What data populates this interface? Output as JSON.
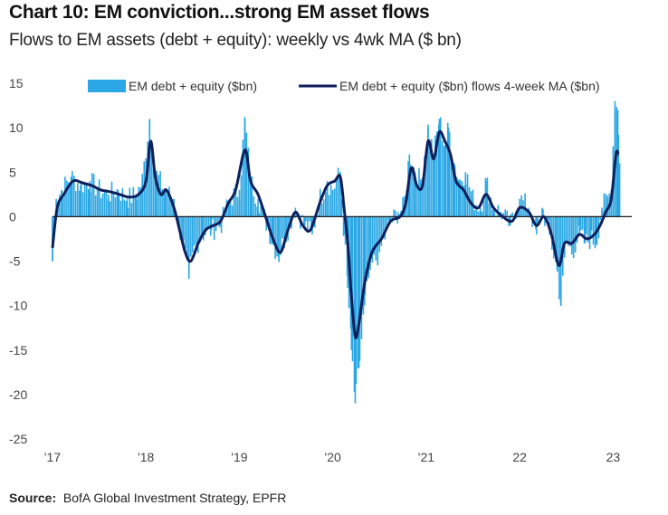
{
  "title": "Chart 10: EM conviction...strong EM asset flows",
  "subtitle": "Flows to EM assets (debt + equity): weekly vs 4wk MA ($ bn)",
  "source_label": "Source:",
  "source_text": "BofA Global Investment Strategy, EPFR",
  "chart_data": {
    "type": "bar+line",
    "title": "Chart 10: EM conviction...strong EM asset flows",
    "ylabel": "",
    "ylim": [
      -25,
      15
    ],
    "yticks": [
      15,
      10,
      5,
      0,
      -5,
      -10,
      -15,
      -20,
      -25
    ],
    "xticks": [
      "'17",
      "'18",
      "'19",
      "'20",
      "'21",
      "22",
      "23"
    ],
    "xlim_years": [
      2017,
      2023.2
    ],
    "grid": false,
    "legend": "top",
    "colors": {
      "bars": "#2aa7e4",
      "line": "#0e1f5c",
      "zero": "#1a1a1a"
    },
    "series": [
      {
        "name": "EM debt + equity ($bn)",
        "kind": "bar",
        "weekly_anchors": [
          [
            2017.0,
            -5
          ],
          [
            2017.04,
            2
          ],
          [
            2017.1,
            3
          ],
          [
            2017.2,
            4.5
          ],
          [
            2017.3,
            3.5
          ],
          [
            2017.4,
            4
          ],
          [
            2017.5,
            3
          ],
          [
            2017.6,
            2.5
          ],
          [
            2017.7,
            3
          ],
          [
            2017.8,
            2
          ],
          [
            2017.9,
            2.5
          ],
          [
            2017.96,
            4
          ],
          [
            2018.04,
            11
          ],
          [
            2018.1,
            5
          ],
          [
            2018.2,
            3
          ],
          [
            2018.3,
            2
          ],
          [
            2018.35,
            -1
          ],
          [
            2018.4,
            -3
          ],
          [
            2018.46,
            -7
          ],
          [
            2018.5,
            -4
          ],
          [
            2018.6,
            -2
          ],
          [
            2018.7,
            -1.5
          ],
          [
            2018.8,
            -1
          ],
          [
            2018.9,
            2
          ],
          [
            2019.0,
            3
          ],
          [
            2019.06,
            11
          ],
          [
            2019.12,
            4
          ],
          [
            2019.2,
            2
          ],
          [
            2019.3,
            -1
          ],
          [
            2019.36,
            -3
          ],
          [
            2019.42,
            -4.5
          ],
          [
            2019.5,
            -2
          ],
          [
            2019.6,
            1
          ],
          [
            2019.7,
            -1
          ],
          [
            2019.78,
            -2
          ],
          [
            2019.86,
            2
          ],
          [
            2019.94,
            4
          ],
          [
            2020.0,
            3
          ],
          [
            2020.08,
            5
          ],
          [
            2020.12,
            -2
          ],
          [
            2020.16,
            -8
          ],
          [
            2020.2,
            -15
          ],
          [
            2020.24,
            -21
          ],
          [
            2020.28,
            -17
          ],
          [
            2020.34,
            -10
          ],
          [
            2020.4,
            -6
          ],
          [
            2020.5,
            -4
          ],
          [
            2020.6,
            -1
          ],
          [
            2020.7,
            0.5
          ],
          [
            2020.76,
            1
          ],
          [
            2020.82,
            7
          ],
          [
            2020.88,
            5
          ],
          [
            2020.94,
            4
          ],
          [
            2021.02,
            10
          ],
          [
            2021.08,
            7
          ],
          [
            2021.14,
            11
          ],
          [
            2021.2,
            8
          ],
          [
            2021.24,
            10
          ],
          [
            2021.3,
            6
          ],
          [
            2021.36,
            4
          ],
          [
            2021.42,
            5
          ],
          [
            2021.5,
            2
          ],
          [
            2021.58,
            1
          ],
          [
            2021.64,
            4
          ],
          [
            2021.72,
            1
          ],
          [
            2021.8,
            0.5
          ],
          [
            2021.9,
            -1
          ],
          [
            2022.0,
            2
          ],
          [
            2022.1,
            1
          ],
          [
            2022.18,
            -2
          ],
          [
            2022.24,
            1
          ],
          [
            2022.32,
            -2
          ],
          [
            2022.4,
            -6
          ],
          [
            2022.44,
            -10
          ],
          [
            2022.5,
            -3
          ],
          [
            2022.56,
            -4
          ],
          [
            2022.64,
            -2
          ],
          [
            2022.7,
            -3
          ],
          [
            2022.76,
            -2.5
          ],
          [
            2022.82,
            -3
          ],
          [
            2022.88,
            1
          ],
          [
            2022.94,
            2
          ],
          [
            2022.98,
            3
          ],
          [
            2023.02,
            13
          ],
          [
            2023.05,
            12
          ],
          [
            2023.07,
            6
          ]
        ]
      },
      {
        "name": "EM debt + equity ($bn) flows 4-week MA ($bn)",
        "kind": "line",
        "points": [
          [
            2017.0,
            -3.5
          ],
          [
            2017.05,
            1
          ],
          [
            2017.12,
            2.5
          ],
          [
            2017.22,
            4
          ],
          [
            2017.32,
            3.8
          ],
          [
            2017.42,
            3.5
          ],
          [
            2017.52,
            3
          ],
          [
            2017.62,
            2.8
          ],
          [
            2017.72,
            2.5
          ],
          [
            2017.82,
            2.2
          ],
          [
            2017.92,
            2.5
          ],
          [
            2018.0,
            4
          ],
          [
            2018.05,
            8.5
          ],
          [
            2018.1,
            4.5
          ],
          [
            2018.16,
            2.5
          ],
          [
            2018.22,
            3
          ],
          [
            2018.3,
            1
          ],
          [
            2018.36,
            -1.5
          ],
          [
            2018.42,
            -4
          ],
          [
            2018.48,
            -5
          ],
          [
            2018.56,
            -3
          ],
          [
            2018.64,
            -1.5
          ],
          [
            2018.72,
            -1
          ],
          [
            2018.8,
            -0.5
          ],
          [
            2018.88,
            1.5
          ],
          [
            2018.96,
            3
          ],
          [
            2019.06,
            7.5
          ],
          [
            2019.12,
            4
          ],
          [
            2019.2,
            2.5
          ],
          [
            2019.28,
            0
          ],
          [
            2019.36,
            -2.5
          ],
          [
            2019.44,
            -4
          ],
          [
            2019.52,
            -1.5
          ],
          [
            2019.6,
            0.5
          ],
          [
            2019.68,
            -1
          ],
          [
            2019.76,
            -1.5
          ],
          [
            2019.86,
            1.5
          ],
          [
            2019.94,
            3.5
          ],
          [
            2020.02,
            4
          ],
          [
            2020.08,
            4.5
          ],
          [
            2020.12,
            1
          ],
          [
            2020.16,
            -3
          ],
          [
            2020.2,
            -9
          ],
          [
            2020.24,
            -13.5
          ],
          [
            2020.28,
            -12
          ],
          [
            2020.34,
            -7.5
          ],
          [
            2020.42,
            -4
          ],
          [
            2020.52,
            -2.5
          ],
          [
            2020.62,
            -0.5
          ],
          [
            2020.72,
            0
          ],
          [
            2020.78,
            1.5
          ],
          [
            2020.84,
            5.5
          ],
          [
            2020.9,
            3.5
          ],
          [
            2020.96,
            3.5
          ],
          [
            2021.02,
            8.5
          ],
          [
            2021.08,
            6.5
          ],
          [
            2021.14,
            9.5
          ],
          [
            2021.2,
            8.5
          ],
          [
            2021.26,
            7
          ],
          [
            2021.32,
            4
          ],
          [
            2021.4,
            3
          ],
          [
            2021.48,
            1.5
          ],
          [
            2021.56,
            1
          ],
          [
            2021.64,
            2.5
          ],
          [
            2021.72,
            1
          ],
          [
            2021.82,
            0
          ],
          [
            2021.92,
            -0.5
          ],
          [
            2022.0,
            1
          ],
          [
            2022.1,
            0.5
          ],
          [
            2022.18,
            -1
          ],
          [
            2022.26,
            0
          ],
          [
            2022.34,
            -2
          ],
          [
            2022.42,
            -5.5
          ],
          [
            2022.48,
            -3
          ],
          [
            2022.56,
            -3
          ],
          [
            2022.64,
            -2
          ],
          [
            2022.72,
            -2.5
          ],
          [
            2022.8,
            -2
          ],
          [
            2022.86,
            -1
          ],
          [
            2022.92,
            0.5
          ],
          [
            2022.98,
            2
          ],
          [
            2023.03,
            7
          ],
          [
            2023.06,
            7
          ]
        ]
      }
    ]
  }
}
